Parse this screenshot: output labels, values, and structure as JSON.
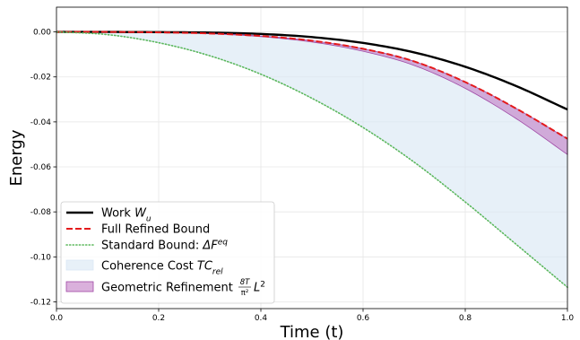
{
  "chart_data": {
    "type": "line",
    "title": "",
    "xlabel": "Time (t)",
    "ylabel": "Energy",
    "xlim": [
      0.0,
      1.0
    ],
    "ylim": [
      -0.123,
      0.011
    ],
    "grid": true,
    "legend_placement": "lower-left",
    "x_ticks": [
      "0.0",
      "0.2",
      "0.4",
      "0.6",
      "0.8",
      "1.0"
    ],
    "y_ticks": [
      "0.00",
      "-0.02",
      "-0.04",
      "-0.06",
      "-0.08",
      "-0.10",
      "-0.12"
    ],
    "x": [
      0.0,
      0.1,
      0.2,
      0.3,
      0.4,
      0.5,
      0.6,
      0.7,
      0.8,
      0.9,
      1.0
    ],
    "series": [
      {
        "name": "Work W_u",
        "legend": {
          "main": "Work ",
          "sym": "W",
          "sub": "u"
        },
        "style": "solid",
        "color": "#000000",
        "values": [
          0.0,
          0.0,
          -0.0001,
          -0.0003,
          -0.0009,
          -0.0023,
          -0.0049,
          -0.0091,
          -0.0155,
          -0.0241,
          -0.0345
        ]
      },
      {
        "name": "Full Refined Bound",
        "legend": {
          "main": "Full Refined Bound"
        },
        "style": "dashed",
        "color": "#e41a1c",
        "values": [
          0.0,
          0.0,
          -0.0002,
          -0.0007,
          -0.0018,
          -0.0039,
          -0.0075,
          -0.0131,
          -0.0223,
          -0.0341,
          -0.0475
        ]
      },
      {
        "name": "Standard Bound: ΔF^eq",
        "legend": {
          "main": "Standard Bound: ",
          "sym": "ΔF",
          "sup": "eq"
        },
        "style": "dotted",
        "color": "#5cb85c",
        "values": [
          0.0,
          -0.0012,
          -0.0048,
          -0.0106,
          -0.0188,
          -0.0295,
          -0.0425,
          -0.0579,
          -0.0756,
          -0.0945,
          -0.1135
        ]
      }
    ],
    "bands": [
      {
        "name": "Coherence Cost TC_rel",
        "legend": {
          "main": "Coherence Cost ",
          "sym": "TC",
          "sub": "rel"
        },
        "color": "#dae8f5",
        "opacity": 0.65,
        "edge_color": "#dae8f5",
        "upper_series": 1,
        "lower_series": 2
      },
      {
        "name": "Geometric Refinement (8T/π²) L²",
        "legend": {
          "main": "Geometric Refinement ",
          "frac_num": "8T",
          "frac_den": "π²",
          "sym": "L",
          "sup": "2"
        },
        "color": "#c27bc4",
        "opacity": 0.6,
        "edge_color": "#a04aa6",
        "upper_series": 1,
        "lower_values": [
          0.0,
          0.0,
          -0.0002,
          -0.0008,
          -0.0021,
          -0.0045,
          -0.0086,
          -0.0149,
          -0.0251,
          -0.0386,
          -0.0545
        ]
      }
    ]
  }
}
